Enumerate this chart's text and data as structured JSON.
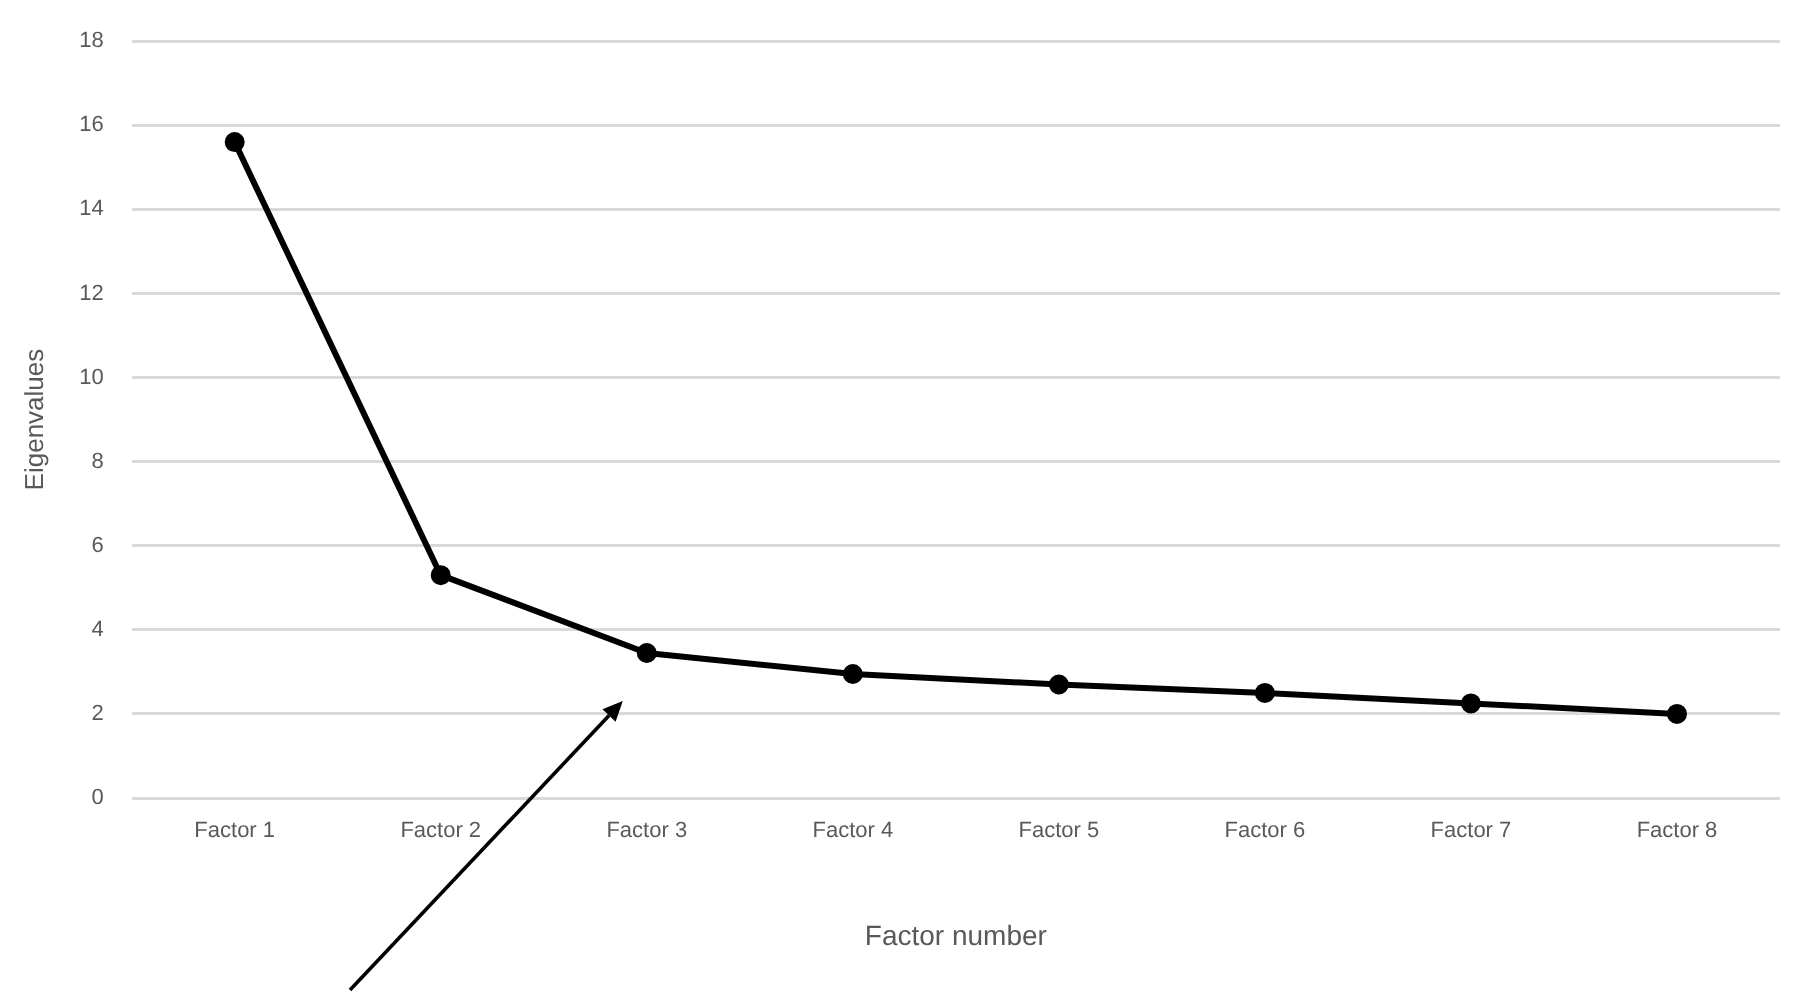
{
  "chart_data": {
    "type": "line",
    "xlabel": "Factor number",
    "ylabel": "Eigenvalues",
    "categories": [
      "Factor 1",
      "Factor 2",
      "Factor 3",
      "Factor 4",
      "Factor 5",
      "Factor 6",
      "Factor 7",
      "Factor 8"
    ],
    "series": [
      {
        "color": "#000000",
        "values": [
          15.6,
          5.3,
          3.45,
          2.95,
          2.7,
          2.5,
          2.25,
          2.0
        ]
      }
    ],
    "ylim": [
      0,
      18
    ],
    "yticks": [
      0,
      2,
      4,
      6,
      8,
      10,
      12,
      14,
      16,
      18
    ],
    "grid": "y",
    "legend": false,
    "marker": "circle",
    "line_style": "solid"
  }
}
